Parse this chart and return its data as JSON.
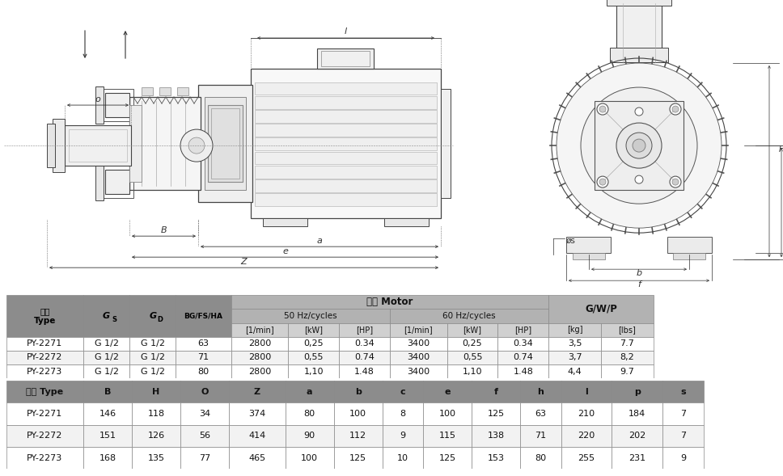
{
  "table1_data": [
    [
      "PY-2271",
      "G 1/2",
      "G 1/2",
      "63",
      "2800",
      "0,25",
      "0.34",
      "3400",
      "0,25",
      "0.34",
      "3,5",
      "7.7"
    ],
    [
      "PY-2272",
      "G 1/2",
      "G 1/2",
      "71",
      "2800",
      "0,55",
      "0.74",
      "3400",
      "0,55",
      "0.74",
      "3,7",
      "8,2"
    ],
    [
      "PY-2273",
      "G 1/2",
      "G 1/2",
      "80",
      "2800",
      "1,10",
      "1.48",
      "3400",
      "1,10",
      "1.48",
      "4,4",
      "9.7"
    ]
  ],
  "table2_header": [
    "型號 Type",
    "B",
    "H",
    "O",
    "Z",
    "a",
    "b",
    "c",
    "e",
    "f",
    "h",
    "l",
    "p",
    "s"
  ],
  "table2_data": [
    [
      "PY-2271",
      "146",
      "118",
      "34",
      "374",
      "80",
      "100",
      "8",
      "100",
      "125",
      "63",
      "210",
      "184",
      "7"
    ],
    [
      "PY-2272",
      "151",
      "126",
      "56",
      "414",
      "90",
      "112",
      "9",
      "115",
      "138",
      "71",
      "220",
      "202",
      "7"
    ],
    [
      "PY-2273",
      "168",
      "135",
      "77",
      "465",
      "100",
      "125",
      "10",
      "125",
      "153",
      "80",
      "255",
      "231",
      "9"
    ]
  ]
}
